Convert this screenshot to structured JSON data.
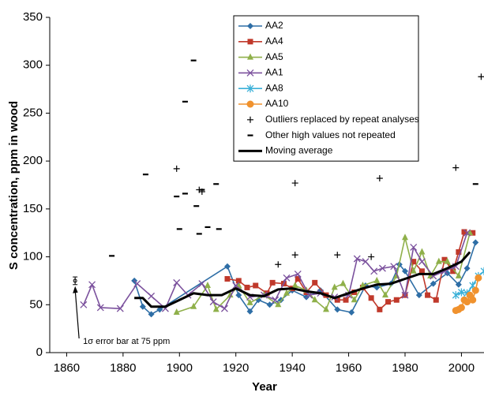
{
  "chart_data": {
    "type": "line",
    "x_label": "Year",
    "y_label": "S concentration, ppm in wood",
    "xlim": [
      1854,
      2008
    ],
    "ylim": [
      0,
      350
    ],
    "xticks": [
      1860,
      1880,
      1900,
      1920,
      1940,
      1960,
      1980,
      2000
    ],
    "yticks": [
      0,
      50,
      100,
      150,
      200,
      250,
      300,
      350
    ],
    "grid": false,
    "legend": "upper-center",
    "series": [
      {
        "name": "AA2",
        "color": "#2e6ea6",
        "marker": "diamond",
        "line": true,
        "x": [
          1884,
          1887,
          1890,
          1893,
          1917,
          1921,
          1925,
          1928,
          1932,
          1936,
          1940,
          1945,
          1950,
          1956,
          1961,
          1966,
          1970,
          1975,
          1978,
          1980,
          1985,
          1990,
          1995,
          1999,
          2002,
          2005
        ],
        "values": [
          75,
          48,
          40,
          45,
          90,
          60,
          43,
          55,
          50,
          55,
          65,
          58,
          65,
          45,
          42,
          70,
          68,
          72,
          92,
          85,
          60,
          72,
          83,
          71,
          88,
          115
        ]
      },
      {
        "name": "AA4",
        "color": "#c0392b",
        "marker": "square",
        "line": true,
        "x": [
          1917,
          1921,
          1924,
          1927,
          1931,
          1933,
          1937,
          1940,
          1942,
          1945,
          1948,
          1952,
          1956,
          1959,
          1962,
          1965,
          1968,
          1971,
          1974,
          1977,
          1980,
          1983,
          1986,
          1988,
          1991,
          1994,
          1997,
          1999,
          2001,
          2004
        ],
        "values": [
          77,
          75,
          68,
          70,
          62,
          73,
          72,
          67,
          77,
          63,
          73,
          60,
          55,
          55,
          63,
          68,
          57,
          45,
          53,
          55,
          60,
          95,
          85,
          60,
          55,
          97,
          85,
          105,
          126,
          125
        ]
      },
      {
        "name": "AA5",
        "color": "#8fb04a",
        "marker": "triangle",
        "line": true,
        "x": [
          1899,
          1905,
          1910,
          1913,
          1918,
          1921,
          1925,
          1930,
          1935,
          1938,
          1941,
          1945,
          1948,
          1952,
          1955,
          1958,
          1962,
          1965,
          1970,
          1973,
          1977,
          1980,
          1983,
          1986,
          1989,
          1992,
          1995,
          1999,
          2003
        ],
        "values": [
          42,
          48,
          70,
          45,
          60,
          70,
          52,
          60,
          50,
          62,
          70,
          65,
          55,
          45,
          68,
          72,
          55,
          70,
          75,
          60,
          80,
          120,
          85,
          105,
          80,
          95,
          95,
          80,
          125
        ]
      },
      {
        "name": "AA1",
        "color": "#7b519d",
        "marker": "x",
        "line": true,
        "x": [
          1866,
          1869,
          1872,
          1879,
          1885,
          1890,
          1895,
          1899,
          1903,
          1908,
          1912,
          1916,
          1920,
          1925,
          1930,
          1934,
          1938,
          1942,
          1946,
          1950,
          1955,
          1960,
          1963,
          1966,
          1969,
          1972,
          1976,
          1980,
          1983,
          1986,
          1990,
          1994,
          1998,
          2002
        ],
        "values": [
          50,
          71,
          47,
          46,
          72,
          59,
          46,
          73,
          60,
          72,
          53,
          46,
          70,
          58,
          60,
          55,
          78,
          82,
          60,
          62,
          58,
          60,
          98,
          95,
          85,
          88,
          90,
          60,
          110,
          95,
          80,
          85,
          90,
          125
        ]
      },
      {
        "name": "AA8",
        "color": "#3ab0d8",
        "marker": "star",
        "line": true,
        "x": [
          1998,
          2000,
          2002,
          2004,
          2006,
          2008
        ],
        "values": [
          60,
          63,
          62,
          70,
          80,
          85
        ]
      },
      {
        "name": "AA10",
        "color": "#f0922e",
        "marker": "circle",
        "line": true,
        "x": [
          1998,
          1999,
          2000,
          2001,
          2002,
          2003,
          2004,
          2005,
          2006
        ],
        "values": [
          44,
          45,
          47,
          55,
          53,
          60,
          55,
          65,
          78
        ]
      },
      {
        "name": "Outliers replaced by repeat analyses",
        "color": "#000000",
        "marker": "plus",
        "line": false,
        "x": [
          1899,
          1907,
          1908,
          1935,
          1941,
          1941,
          1956,
          1968,
          1971,
          1998,
          2007
        ],
        "values": [
          192,
          170,
          168,
          92,
          102,
          177,
          102,
          100,
          182,
          193,
          288
        ]
      },
      {
        "name": "Other high values not repeated",
        "color": "#000000",
        "marker": "dash",
        "line": false,
        "x": [
          1876,
          1888,
          1899,
          1900,
          1902,
          1902,
          1905,
          1906,
          1907,
          1908,
          1910,
          1913,
          1914,
          2005
        ],
        "values": [
          101,
          186,
          163,
          129,
          262,
          166,
          305,
          153,
          124,
          170,
          131,
          176,
          129,
          176
        ]
      },
      {
        "name": "Moving average",
        "color": "#000000",
        "marker": "none",
        "line": true,
        "width": 3,
        "x": [
          1884,
          1887,
          1890,
          1895,
          1900,
          1905,
          1910,
          1915,
          1920,
          1925,
          1930,
          1935,
          1940,
          1945,
          1950,
          1955,
          1960,
          1965,
          1970,
          1975,
          1980,
          1985,
          1990,
          1995,
          2000,
          2003
        ],
        "values": [
          57,
          57,
          48,
          48,
          55,
          62,
          60,
          60,
          67,
          60,
          59,
          66,
          67,
          64,
          62,
          57,
          62,
          67,
          71,
          72,
          77,
          82,
          82,
          88,
          95,
          105
        ]
      }
    ],
    "error_bar": {
      "x": 1863,
      "value": 75,
      "error": 4,
      "label": "1σ error bar at 75 ppm"
    }
  }
}
